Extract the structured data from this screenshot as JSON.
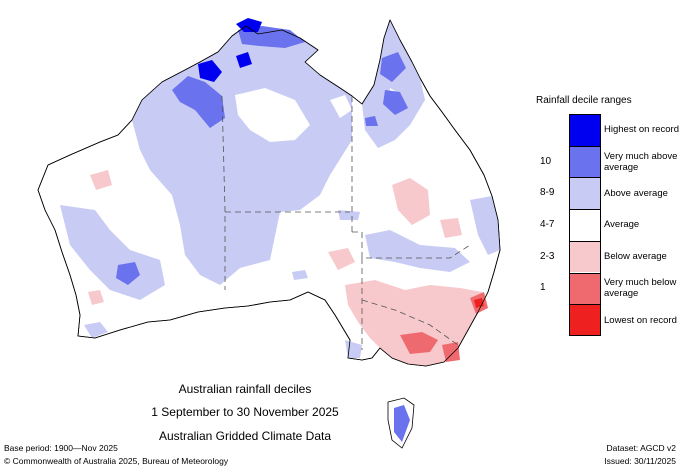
{
  "legend": {
    "title": "Rainfall decile ranges",
    "items": [
      {
        "code": "",
        "label": "Highest on record",
        "color": "#0000f0"
      },
      {
        "code": "10",
        "label": "Very much above average",
        "color": "#6a72ee"
      },
      {
        "code": "8-9",
        "label": "Above average",
        "color": "#c8cbf4"
      },
      {
        "code": "4-7",
        "label": "Average",
        "color": "#ffffff"
      },
      {
        "code": "2-3",
        "label": "Below average",
        "color": "#f7c9cc"
      },
      {
        "code": "1",
        "label": "Very much below average",
        "color": "#ef6a6e"
      },
      {
        "code": "",
        "label": "Lowest on record",
        "color": "#ee2020"
      }
    ]
  },
  "caption": {
    "line1": "Australian rainfall deciles",
    "line2": "1 September to 30 November 2025",
    "line3": "Australian Gridded Climate Data"
  },
  "footer": {
    "base_period": "Base period: 1900—Nov 2025",
    "dataset": "Dataset: AGCD v2",
    "copyright": "© Commonwealth of Australia 2025, Bureau of Meteorology",
    "issued": "Issued: 30/11/2025"
  }
}
